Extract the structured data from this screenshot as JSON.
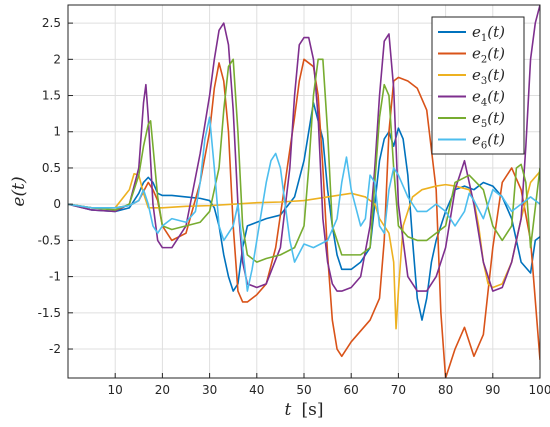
{
  "chart_data": {
    "type": "line",
    "title": "",
    "xlabel": "t",
    "xlabel_unit": "[s]",
    "ylabel": "e(t)",
    "xlim": [
      0,
      100
    ],
    "ylim": [
      -2.4,
      2.75
    ],
    "xticks": [
      10,
      20,
      30,
      40,
      50,
      60,
      70,
      80,
      90,
      100
    ],
    "yticks": [
      -2,
      -1.5,
      -1,
      -0.5,
      0,
      0.5,
      1,
      1.5,
      2,
      2.5
    ],
    "grid": true,
    "legend_position": "top-right",
    "series": [
      {
        "name": "e1(t)",
        "label_base": "e",
        "label_sub": "1",
        "label_tail": "(t)",
        "color": "#0072BD",
        "x": [
          0,
          5,
          10,
          13,
          15,
          16,
          17,
          18,
          19,
          20,
          22,
          25,
          28,
          30,
          31,
          32,
          33,
          34,
          35,
          36,
          37,
          38,
          40,
          42,
          45,
          48,
          50,
          52,
          54,
          55,
          56,
          57,
          58,
          60,
          62,
          64,
          65,
          66,
          67,
          68,
          69,
          70,
          71,
          72,
          73,
          74,
          75,
          76,
          77,
          78,
          79,
          80,
          82,
          84,
          86,
          88,
          90,
          92,
          94,
          96,
          98,
          99,
          100
        ],
        "y": [
          0,
          -0.08,
          -0.1,
          -0.05,
          0.15,
          0.3,
          0.37,
          0.3,
          0.15,
          0.12,
          0.12,
          0.1,
          0.08,
          0.05,
          -0.05,
          -0.3,
          -0.7,
          -1.0,
          -1.2,
          -1.1,
          -0.6,
          -0.3,
          -0.25,
          -0.2,
          -0.15,
          0.1,
          0.6,
          1.4,
          0.9,
          0.2,
          -0.3,
          -0.7,
          -0.9,
          -0.9,
          -0.8,
          -0.6,
          0.0,
          0.6,
          0.9,
          1.0,
          0.8,
          1.05,
          0.9,
          0.4,
          -0.5,
          -1.3,
          -1.6,
          -1.3,
          -0.8,
          -0.5,
          -0.3,
          -0.1,
          0.2,
          0.25,
          0.2,
          0.3,
          0.25,
          0.1,
          -0.2,
          -0.8,
          -0.95,
          -0.5,
          -0.45
        ]
      },
      {
        "name": "e2(t)",
        "label_base": "e",
        "label_sub": "2",
        "label_tail": "(t)",
        "color": "#D95319",
        "x": [
          0,
          5,
          10,
          13,
          15,
          17,
          18,
          19,
          20,
          22,
          25,
          28,
          30,
          31,
          32,
          33,
          34,
          35,
          36,
          37,
          38,
          40,
          42,
          44,
          46,
          48,
          49,
          50,
          52,
          53,
          54,
          55,
          56,
          57,
          58,
          60,
          62,
          64,
          66,
          67,
          68,
          69,
          70,
          72,
          74,
          76,
          78,
          79,
          80,
          81,
          82,
          84,
          86,
          88,
          90,
          92,
          94,
          96,
          98,
          100
        ],
        "y": [
          0,
          -0.05,
          -0.05,
          -0.02,
          0.05,
          0.3,
          0.2,
          0.05,
          -0.3,
          -0.5,
          -0.4,
          0.3,
          1.0,
          1.6,
          1.95,
          1.7,
          1.0,
          -0.3,
          -1.2,
          -1.35,
          -1.35,
          -1.25,
          -1.1,
          -0.6,
          0.3,
          1.2,
          1.7,
          2.0,
          1.9,
          1.5,
          0.5,
          -0.7,
          -1.6,
          -2.0,
          -2.1,
          -1.9,
          -1.75,
          -1.6,
          -1.3,
          -0.5,
          1.0,
          1.7,
          1.75,
          1.7,
          1.6,
          1.3,
          0.2,
          -1.5,
          -2.4,
          -2.2,
          -2.0,
          -1.7,
          -2.1,
          -1.8,
          -0.6,
          0.3,
          0.5,
          0.2,
          -0.5,
          -2.15
        ]
      },
      {
        "name": "e3(t)",
        "label_base": "e",
        "label_sub": "3",
        "label_tail": "(t)",
        "color": "#EDB120",
        "x": [
          0,
          5,
          10,
          13,
          14,
          15,
          16,
          17,
          18,
          20,
          25,
          30,
          35,
          40,
          45,
          50,
          55,
          60,
          63,
          65,
          66,
          67,
          68,
          69,
          69.5,
          70,
          71,
          73,
          75,
          78,
          80,
          82,
          85,
          86,
          87,
          88,
          89,
          90,
          92,
          94,
          96,
          98,
          100
        ],
        "y": [
          0,
          -0.05,
          -0.05,
          0.2,
          0.42,
          0.4,
          0.15,
          -0.05,
          -0.05,
          -0.05,
          -0.03,
          -0.02,
          0.0,
          0.02,
          0.03,
          0.05,
          0.1,
          0.15,
          0.1,
          0.0,
          -0.2,
          -0.3,
          -0.4,
          -0.8,
          -1.72,
          -1.2,
          -0.3,
          0.1,
          0.2,
          0.25,
          0.27,
          0.25,
          0.2,
          0.05,
          -0.3,
          -0.8,
          -1.1,
          -1.15,
          -1.1,
          -0.8,
          -0.2,
          0.3,
          0.45
        ]
      },
      {
        "name": "e4(t)",
        "label_base": "e",
        "label_sub": "4",
        "label_tail": "(t)",
        "color": "#7E2F8E",
        "x": [
          0,
          5,
          10,
          13,
          15,
          16,
          16.5,
          17,
          18,
          19,
          20,
          22,
          25,
          28,
          30,
          31,
          32,
          33,
          34,
          35,
          36,
          37,
          38,
          40,
          42,
          45,
          47,
          48,
          49,
          50,
          51,
          52,
          53,
          54,
          55,
          56,
          57,
          58,
          60,
          62,
          64,
          65,
          66,
          67,
          68,
          69,
          70,
          72,
          74,
          76,
          78,
          80,
          82,
          84,
          86,
          88,
          90,
          92,
          94,
          96,
          97,
          98,
          99,
          100
        ],
        "y": [
          0,
          -0.08,
          -0.1,
          0.0,
          0.5,
          1.4,
          1.65,
          1.2,
          0.0,
          -0.5,
          -0.6,
          -0.6,
          -0.3,
          0.7,
          1.5,
          2.0,
          2.4,
          2.5,
          2.2,
          1.3,
          0.0,
          -0.8,
          -1.1,
          -1.15,
          -1.1,
          -0.6,
          0.5,
          1.5,
          2.2,
          2.3,
          2.3,
          2.0,
          1.2,
          -0.2,
          -0.8,
          -1.1,
          -1.2,
          -1.2,
          -1.15,
          -1.0,
          -0.3,
          0.5,
          1.5,
          2.25,
          2.35,
          1.6,
          0.0,
          -1.0,
          -1.2,
          -1.2,
          -1.0,
          -0.6,
          0.2,
          0.6,
          0.0,
          -0.8,
          -1.2,
          -1.15,
          -0.8,
          -0.2,
          0.8,
          2.0,
          2.5,
          2.75
        ]
      },
      {
        "name": "e5(t)",
        "label_base": "e",
        "label_sub": "5",
        "label_tail": "(t)",
        "color": "#77AC30",
        "x": [
          0,
          5,
          10,
          13,
          15,
          16,
          17,
          17.5,
          18,
          19,
          20,
          22,
          25,
          28,
          30,
          32,
          33,
          34,
          35,
          36,
          37,
          38,
          40,
          42,
          45,
          48,
          50,
          51,
          52,
          53,
          54,
          55,
          56,
          58,
          60,
          62,
          64,
          65,
          66,
          67,
          68,
          69,
          70,
          72,
          74,
          76,
          78,
          80,
          82,
          85,
          88,
          90,
          92,
          94,
          95,
          96,
          97,
          98,
          100
        ],
        "y": [
          0,
          -0.05,
          -0.08,
          0.0,
          0.4,
          0.8,
          1.1,
          1.15,
          0.8,
          0.1,
          -0.3,
          -0.35,
          -0.3,
          -0.25,
          -0.1,
          0.5,
          1.3,
          1.9,
          2.0,
          1.0,
          -0.3,
          -0.7,
          -0.8,
          -0.75,
          -0.7,
          -0.6,
          -0.3,
          0.5,
          1.5,
          2.0,
          2.0,
          1.0,
          -0.3,
          -0.7,
          -0.7,
          -0.7,
          -0.6,
          0.3,
          1.2,
          1.65,
          1.5,
          0.5,
          -0.3,
          -0.45,
          -0.5,
          -0.5,
          -0.4,
          -0.3,
          0.3,
          0.4,
          0.2,
          -0.3,
          -0.5,
          -0.3,
          0.5,
          0.55,
          0.3,
          -0.6,
          0.5
        ]
      },
      {
        "name": "e6(t)",
        "label_base": "e",
        "label_sub": "6",
        "label_tail": "(t)",
        "color": "#4DBEEE",
        "x": [
          0,
          5,
          10,
          13,
          15,
          16,
          17,
          18,
          19,
          20,
          22,
          25,
          27,
          28,
          29,
          30,
          31,
          32,
          33,
          35,
          36,
          37,
          38,
          39,
          40,
          41,
          42,
          43,
          44,
          45,
          46,
          47,
          48,
          50,
          52,
          55,
          57,
          58,
          59,
          60,
          62,
          63,
          64,
          65,
          66,
          67,
          68,
          69,
          70,
          72,
          74,
          76,
          78,
          80,
          82,
          84,
          85,
          86,
          88,
          90,
          92,
          94,
          96,
          98,
          100
        ],
        "y": [
          0,
          -0.05,
          -0.05,
          -0.02,
          0.05,
          0.2,
          0.0,
          -0.3,
          -0.4,
          -0.3,
          -0.2,
          -0.25,
          -0.1,
          0.3,
          0.9,
          1.2,
          0.5,
          -0.3,
          -0.5,
          -0.3,
          0.0,
          -0.6,
          -1.2,
          -0.9,
          -0.5,
          -0.1,
          0.3,
          0.6,
          0.7,
          0.5,
          0.0,
          -0.5,
          -0.8,
          -0.55,
          -0.6,
          -0.5,
          -0.2,
          0.3,
          0.65,
          0.2,
          -0.3,
          -0.2,
          0.4,
          0.3,
          -0.3,
          -0.4,
          0.2,
          0.5,
          0.4,
          0.1,
          -0.1,
          -0.1,
          0.0,
          -0.1,
          -0.3,
          -0.1,
          0.15,
          0.05,
          -0.2,
          0.2,
          0.1,
          -0.1,
          0.0,
          0.1,
          0.0
        ]
      }
    ]
  }
}
